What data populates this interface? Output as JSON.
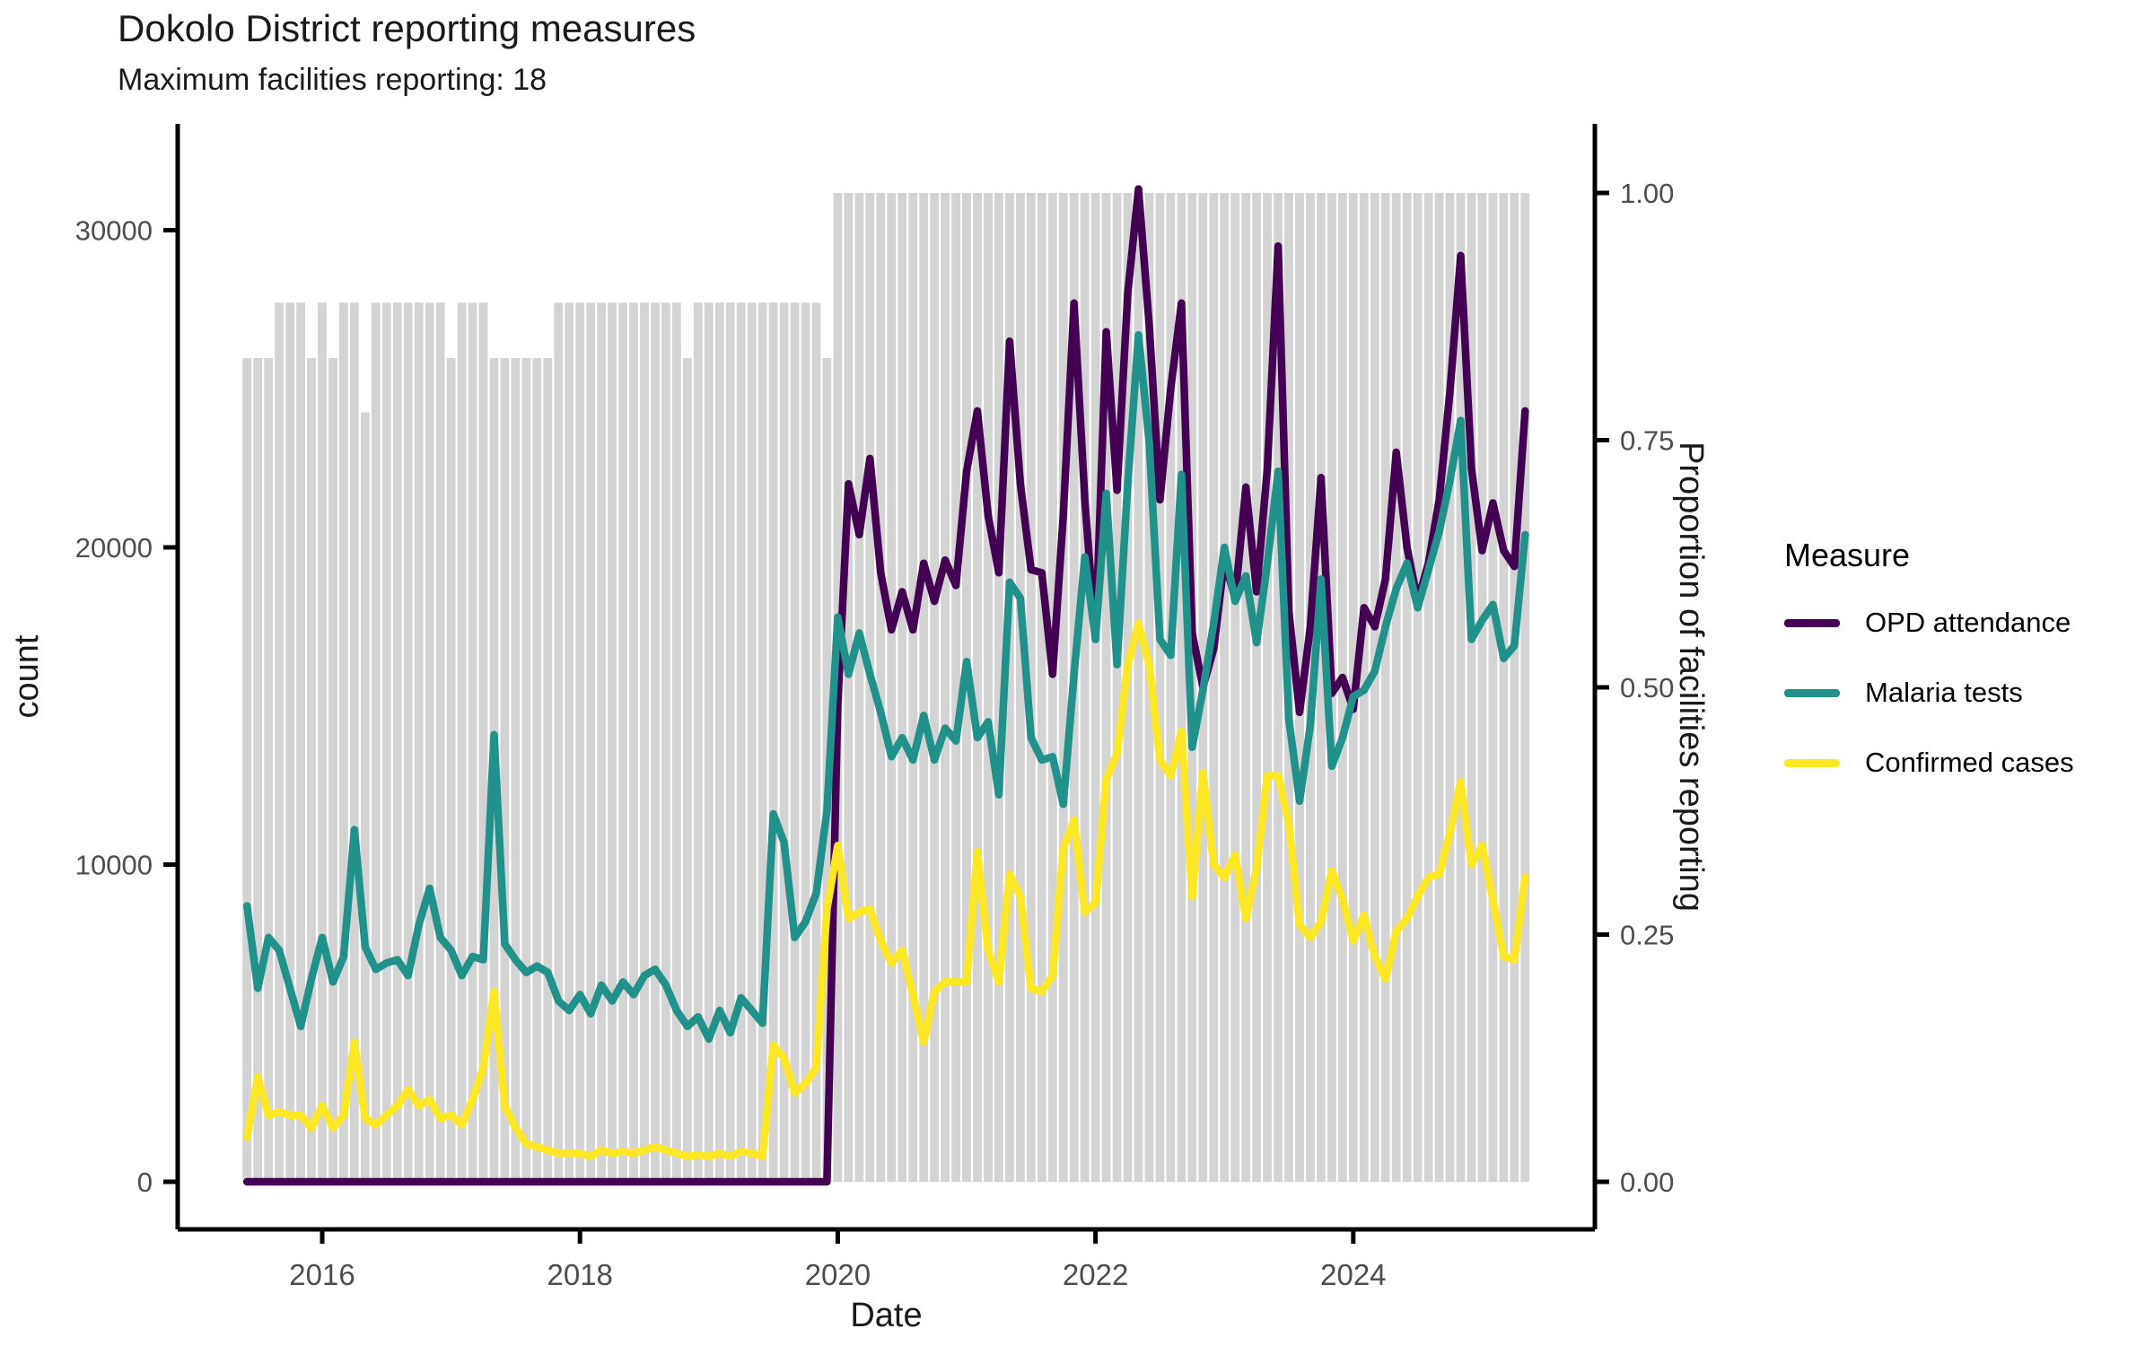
{
  "header": {
    "title": "Dokolo District reporting measures",
    "subtitle": "Maximum facilities reporting: 18"
  },
  "legend": {
    "title": "Measure",
    "items": [
      {
        "label": "OPD attendance",
        "color": "#440154"
      },
      {
        "label": "Malaria tests",
        "color": "#21918c"
      },
      {
        "label": "Confirmed cases",
        "color": "#fde725"
      }
    ]
  },
  "chart_data": {
    "type": "line",
    "title": "Dokolo District reporting measures",
    "subtitle": "Maximum facilities reporting: 18",
    "xlabel": "Date",
    "ylabel_left": "count",
    "ylabel_right": "Proportion of facilities reporting",
    "x_tick_years": [
      2016,
      2018,
      2020,
      2022,
      2024
    ],
    "y_left_ticks": [
      0,
      10000,
      20000,
      30000
    ],
    "y_left_tick_labels": [
      "0",
      "10000",
      "20000",
      "30000"
    ],
    "y_right_ticks": [
      0,
      0.25,
      0.5,
      0.75,
      1.0
    ],
    "y_right_tick_labels": [
      "0.00",
      "0.25",
      "0.50",
      "0.75",
      "1.00"
    ],
    "ylim_left": [
      0,
      31175
    ],
    "ylim_right": [
      0,
      1.0
    ],
    "max_facilities": 18,
    "start_month": "2015-06",
    "end_month": "2025-05",
    "months_per_point": 1,
    "bar_color": "#d3d3d3",
    "bars_name": "proportion_of_facilities_reporting",
    "reporting_proportion": [
      0.833,
      0.833,
      0.833,
      0.889,
      0.889,
      0.889,
      0.833,
      0.889,
      0.833,
      0.889,
      0.889,
      0.778,
      0.889,
      0.889,
      0.889,
      0.889,
      0.889,
      0.889,
      0.889,
      0.833,
      0.889,
      0.889,
      0.889,
      0.833,
      0.833,
      0.833,
      0.833,
      0.833,
      0.833,
      0.889,
      0.889,
      0.889,
      0.889,
      0.889,
      0.889,
      0.889,
      0.889,
      0.889,
      0.889,
      0.889,
      0.889,
      0.833,
      0.889,
      0.889,
      0.889,
      0.889,
      0.889,
      0.889,
      0.889,
      0.889,
      0.889,
      0.889,
      0.889,
      0.889,
      0.833,
      1,
      1,
      1,
      1,
      1,
      1,
      1,
      1,
      1,
      1,
      1,
      1,
      1,
      1,
      1,
      1,
      1,
      1,
      1,
      1,
      1,
      1,
      1,
      1,
      1,
      1,
      1,
      1,
      1,
      1,
      1,
      1,
      1,
      1,
      1,
      1,
      1,
      1,
      1,
      1,
      1,
      1,
      1,
      1,
      1,
      1,
      1,
      1,
      1,
      1,
      1,
      1,
      1,
      1,
      1,
      1,
      1,
      1,
      1,
      1,
      1,
      1,
      1,
      1,
      1
    ],
    "series": [
      {
        "name": "OPD attendance",
        "color": "#440154",
        "values": [
          0,
          0,
          0,
          0,
          0,
          0,
          0,
          0,
          0,
          0,
          0,
          0,
          0,
          0,
          0,
          0,
          0,
          0,
          0,
          0,
          0,
          0,
          0,
          0,
          0,
          0,
          0,
          0,
          0,
          0,
          0,
          0,
          0,
          0,
          0,
          0,
          0,
          0,
          0,
          0,
          0,
          0,
          0,
          0,
          0,
          0,
          0,
          0,
          0,
          0,
          0,
          0,
          0,
          0,
          0,
          15000,
          22000,
          20400,
          22800,
          19200,
          17400,
          18600,
          17400,
          19500,
          18300,
          19600,
          18800,
          22400,
          24300,
          21000,
          19200,
          26500,
          22000,
          19300,
          19200,
          16000,
          21000,
          27700,
          21500,
          17100,
          26800,
          21800,
          28000,
          31300,
          27000,
          21500,
          25000,
          27700,
          17300,
          15600,
          16800,
          19600,
          18400,
          21900,
          18600,
          22500,
          29500,
          18000,
          14800,
          17500,
          22200,
          15400,
          15900,
          14900,
          18100,
          17500,
          19000,
          23000,
          20000,
          18300,
          19500,
          21500,
          24900,
          29200,
          22500,
          19900,
          21400,
          19900,
          19400,
          24300
        ]
      },
      {
        "name": "Malaria tests",
        "color": "#21918c",
        "values": [
          8700,
          6100,
          7700,
          7300,
          6100,
          4900,
          6400,
          7700,
          6300,
          7100,
          11100,
          7400,
          6700,
          6900,
          7000,
          6500,
          8100,
          9250,
          7700,
          7300,
          6500,
          7100,
          7000,
          14100,
          7500,
          7000,
          6600,
          6800,
          6600,
          5700,
          5400,
          5900,
          5300,
          6200,
          5700,
          6300,
          5900,
          6500,
          6700,
          6200,
          5400,
          4900,
          5200,
          4500,
          5400,
          4700,
          5800,
          5400,
          5000,
          11600,
          10700,
          7700,
          8200,
          9100,
          11700,
          17800,
          16000,
          17300,
          16000,
          14800,
          13400,
          14000,
          13300,
          14700,
          13300,
          14300,
          13900,
          16400,
          14000,
          14500,
          12200,
          18900,
          18400,
          14000,
          13300,
          13400,
          11900,
          16000,
          19700,
          17100,
          21700,
          16300,
          22000,
          26700,
          23300,
          17100,
          16600,
          22300,
          13700,
          15500,
          17600,
          20000,
          18300,
          19100,
          17000,
          19500,
          22400,
          14600,
          12000,
          14400,
          19000,
          13100,
          14000,
          15300,
          15500,
          16100,
          17500,
          18700,
          19500,
          18100,
          19300,
          20500,
          22100,
          24000,
          17100,
          17700,
          18200,
          16500,
          16900,
          20400
        ]
      },
      {
        "name": "Confirmed cases",
        "color": "#fde725",
        "values": [
          1400,
          3300,
          2100,
          2200,
          2100,
          2100,
          1700,
          2400,
          1700,
          2100,
          4400,
          2000,
          1800,
          2100,
          2400,
          2900,
          2400,
          2600,
          2000,
          2100,
          1800,
          2600,
          3600,
          6000,
          2400,
          1700,
          1200,
          1100,
          1000,
          900,
          900,
          900,
          800,
          1000,
          900,
          950,
          900,
          1000,
          1100,
          1000,
          900,
          800,
          850,
          800,
          900,
          800,
          950,
          900,
          800,
          4300,
          3900,
          2800,
          3100,
          3600,
          8600,
          10600,
          8300,
          8500,
          8600,
          7600,
          6900,
          7300,
          5900,
          4400,
          6000,
          6300,
          6300,
          6300,
          10400,
          7300,
          6300,
          9700,
          9000,
          6100,
          6000,
          6500,
          10500,
          11400,
          8500,
          8800,
          12700,
          13500,
          16300,
          17600,
          16300,
          13300,
          12800,
          14200,
          9000,
          12900,
          10000,
          9600,
          10300,
          8300,
          9900,
          12800,
          12800,
          11300,
          8100,
          7700,
          8200,
          9800,
          8900,
          7600,
          8400,
          7100,
          6400,
          7900,
          8300,
          9000,
          9600,
          9700,
          11000,
          12600,
          10000,
          10600,
          8900,
          7100,
          7000,
          9600
        ]
      }
    ]
  }
}
